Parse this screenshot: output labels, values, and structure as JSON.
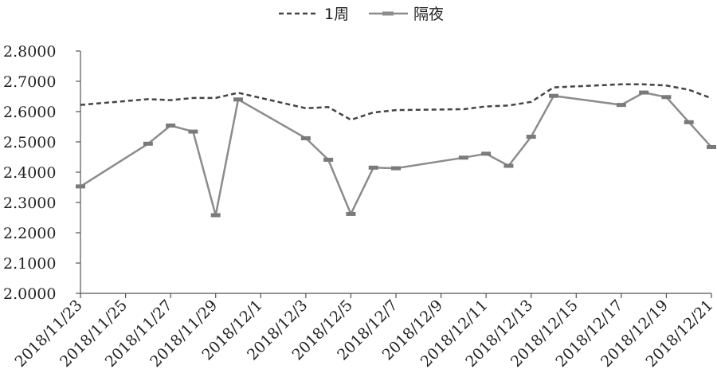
{
  "chart_data": {
    "type": "line",
    "title": "",
    "xlabel": "",
    "ylabel": "",
    "ylim": [
      2.0,
      2.8
    ],
    "yticks": [
      "2.0000",
      "2.1000",
      "2.2000",
      "2.3000",
      "2.4000",
      "2.5000",
      "2.6000",
      "2.7000",
      "2.8000"
    ],
    "grid": false,
    "legend_position": "top-center",
    "xtick_labels": [
      "2018/11/23",
      "2018/11/25",
      "2018/11/27",
      "2018/11/29",
      "2018/12/1",
      "2018/12/3",
      "2018/12/5",
      "2018/12/7",
      "2018/12/9",
      "2018/12/11",
      "2018/12/13",
      "2018/12/15",
      "2018/12/17",
      "2018/12/19",
      "2018/12/21"
    ],
    "series": [
      {
        "name": "1周",
        "style": "dashed",
        "color": "#444444",
        "points": [
          [
            "2018/11/23",
            2.622
          ],
          [
            "2018/11/26",
            2.641
          ],
          [
            "2018/11/27",
            2.638
          ],
          [
            "2018/11/28",
            2.645
          ],
          [
            "2018/11/29",
            2.645
          ],
          [
            "2018/11/30",
            2.662
          ],
          [
            "2018/12/3",
            2.611
          ],
          [
            "2018/12/4",
            2.615
          ],
          [
            "2018/12/5",
            2.573
          ],
          [
            "2018/12/6",
            2.597
          ],
          [
            "2018/12/7",
            2.605
          ],
          [
            "2018/12/10",
            2.608
          ],
          [
            "2018/12/11",
            2.617
          ],
          [
            "2018/12/12",
            2.62
          ],
          [
            "2018/12/13",
            2.632
          ],
          [
            "2018/12/14",
            2.68
          ],
          [
            "2018/12/17",
            2.69
          ],
          [
            "2018/12/18",
            2.69
          ],
          [
            "2018/12/19",
            2.686
          ],
          [
            "2018/12/20",
            2.672
          ],
          [
            "2018/12/21",
            2.644
          ]
        ]
      },
      {
        "name": "隔夜",
        "style": "solid-with-dash-markers",
        "color": "#8c8c8c",
        "points": [
          [
            "2018/11/23",
            2.353
          ],
          [
            "2018/11/26",
            2.494
          ],
          [
            "2018/11/27",
            2.554
          ],
          [
            "2018/11/28",
            2.534
          ],
          [
            "2018/11/29",
            2.258
          ],
          [
            "2018/11/30",
            2.64
          ],
          [
            "2018/12/3",
            2.512
          ],
          [
            "2018/12/4",
            2.441
          ],
          [
            "2018/12/5",
            2.262
          ],
          [
            "2018/12/6",
            2.415
          ],
          [
            "2018/12/7",
            2.413
          ],
          [
            "2018/12/10",
            2.448
          ],
          [
            "2018/12/11",
            2.461
          ],
          [
            "2018/12/12",
            2.421
          ],
          [
            "2018/12/13",
            2.517
          ],
          [
            "2018/12/14",
            2.652
          ],
          [
            "2018/12/17",
            2.622
          ],
          [
            "2018/12/18",
            2.663
          ],
          [
            "2018/12/19",
            2.648
          ],
          [
            "2018/12/20",
            2.565
          ],
          [
            "2018/12/21",
            2.483
          ]
        ]
      }
    ]
  }
}
